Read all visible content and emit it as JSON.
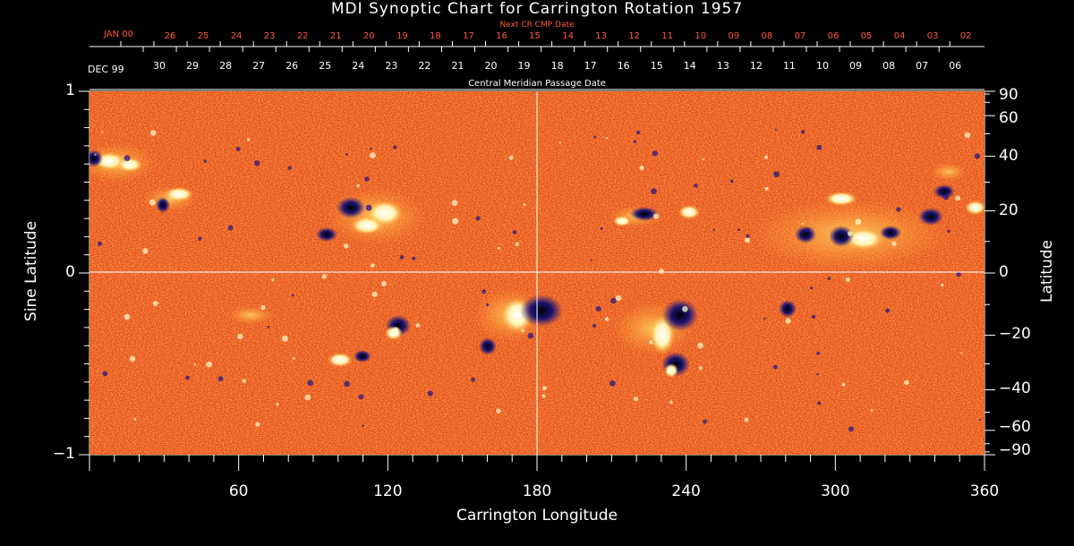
{
  "title": "MDI Synoptic Chart for Carrington Rotation 1957",
  "top_axis": {
    "next_cr_label": "Next CR CMP Date",
    "next_cr_month": "JAN 00",
    "next_cr_dates": [
      "26",
      "25",
      "24",
      "23",
      "22",
      "21",
      "20",
      "19",
      "18",
      "17",
      "16",
      "15",
      "14",
      "13",
      "12",
      "11",
      "10",
      "09",
      "08",
      "07",
      "06",
      "05",
      "04",
      "03",
      "02"
    ],
    "cmp_month": "DEC 99",
    "cmp_dates": [
      "30",
      "29",
      "28",
      "27",
      "26",
      "25",
      "24",
      "23",
      "22",
      "21",
      "20",
      "19",
      "18",
      "17",
      "16",
      "15",
      "14",
      "13",
      "12",
      "11",
      "10",
      "09",
      "08",
      "07",
      "06"
    ],
    "cmp_label": "Central Meridian Passage Date"
  },
  "x_axis": {
    "label": "Carrington Longitude",
    "ticks": [
      "60",
      "120",
      "180",
      "240",
      "300",
      "360"
    ],
    "range": [
      0,
      360
    ]
  },
  "y_axis_left": {
    "label": "Sine Latitude",
    "ticks": [
      "1",
      "0",
      "−1"
    ]
  },
  "y_axis_right": {
    "label": "Latitude",
    "ticks": [
      "90",
      "60",
      "40",
      "20",
      "0",
      "−20",
      "−40",
      "−60",
      "−90"
    ]
  },
  "colors": {
    "positive": "#ffffff",
    "neutral": "#e8501a",
    "negative": "#141060",
    "annotation_red": "#ff5a3c"
  }
}
